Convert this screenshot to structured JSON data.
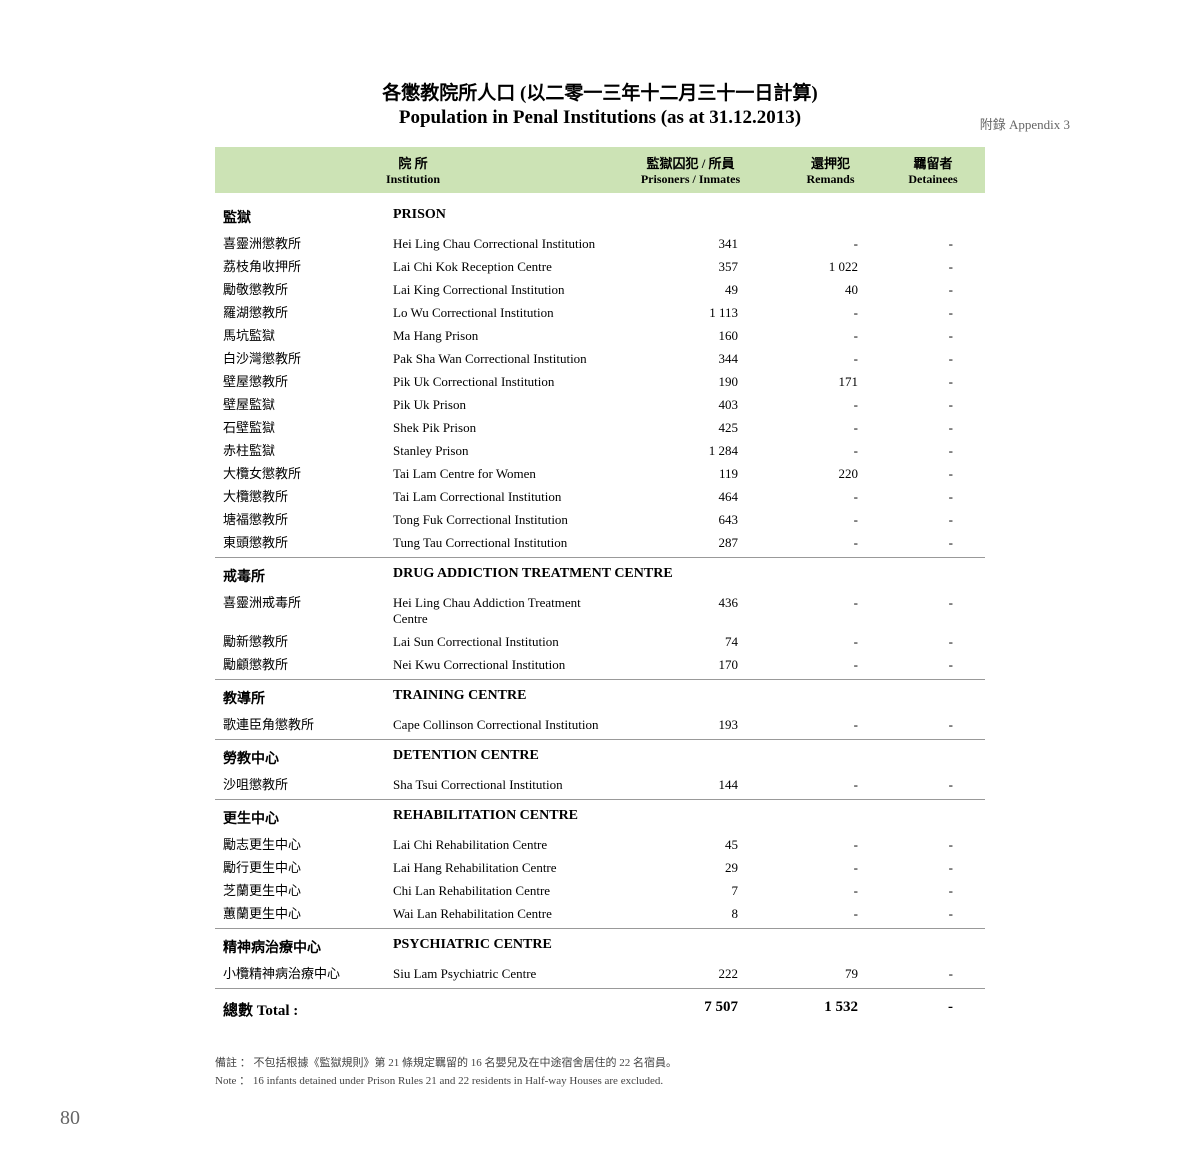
{
  "appendix": "附錄 Appendix 3",
  "title_zh": "各懲教院所人口 (以二零一三年十二月三十一日計算)",
  "title_en": "Population in Penal Institutions (as at 31.12.2013)",
  "header": {
    "inst_zh": "院 所",
    "inst_en": "Institution",
    "pris_zh": "監獄囚犯 / 所員",
    "pris_en": "Prisoners / Inmates",
    "rem_zh": "還押犯",
    "rem_en": "Remands",
    "det_zh": "羈留者",
    "det_en": "Detainees"
  },
  "sections": [
    {
      "head_zh": "監獄",
      "head_en": "PRISON",
      "rows": [
        {
          "zh": "喜靈洲懲教所",
          "en": "Hei Ling Chau Correctional Institution",
          "p": "341",
          "r": "-",
          "d": "-"
        },
        {
          "zh": "荔枝角收押所",
          "en": "Lai Chi Kok Reception Centre",
          "p": "357",
          "r": "1 022",
          "d": "-"
        },
        {
          "zh": "勵敬懲教所",
          "en": "Lai King Correctional Institution",
          "p": "49",
          "r": "40",
          "d": "-"
        },
        {
          "zh": "羅湖懲教所",
          "en": "Lo Wu Correctional Institution",
          "p": "1 113",
          "r": "-",
          "d": "-"
        },
        {
          "zh": "馬坑監獄",
          "en": "Ma Hang Prison",
          "p": "160",
          "r": "-",
          "d": "-"
        },
        {
          "zh": "白沙灣懲教所",
          "en": "Pak Sha Wan Correctional Institution",
          "p": "344",
          "r": "-",
          "d": "-"
        },
        {
          "zh": "壁屋懲教所",
          "en": "Pik Uk Correctional Institution",
          "p": "190",
          "r": "171",
          "d": "-"
        },
        {
          "zh": "壁屋監獄",
          "en": "Pik Uk Prison",
          "p": "403",
          "r": "-",
          "d": "-"
        },
        {
          "zh": "石壁監獄",
          "en": "Shek Pik Prison",
          "p": "425",
          "r": "-",
          "d": "-"
        },
        {
          "zh": "赤柱監獄",
          "en": "Stanley Prison",
          "p": "1 284",
          "r": "-",
          "d": "-"
        },
        {
          "zh": "大欖女懲教所",
          "en": "Tai Lam Centre for Women",
          "p": "119",
          "r": "220",
          "d": "-"
        },
        {
          "zh": "大欖懲教所",
          "en": "Tai Lam Correctional Institution",
          "p": "464",
          "r": "-",
          "d": "-"
        },
        {
          "zh": "塘福懲教所",
          "en": "Tong Fuk Correctional Institution",
          "p": "643",
          "r": "-",
          "d": "-"
        },
        {
          "zh": "東頭懲教所",
          "en": "Tung Tau Correctional Institution",
          "p": "287",
          "r": "-",
          "d": "-"
        }
      ]
    },
    {
      "head_zh": "戒毒所",
      "head_en": "DRUG ADDICTION TREATMENT CENTRE",
      "rows": [
        {
          "zh": "喜靈洲戒毒所",
          "en": "Hei Ling Chau Addiction Treatment Centre",
          "p": "436",
          "r": "-",
          "d": "-"
        },
        {
          "zh": "勵新懲教所",
          "en": "Lai Sun Correctional Institution",
          "p": "74",
          "r": "-",
          "d": "-"
        },
        {
          "zh": "勵顧懲教所",
          "en": "Nei Kwu Correctional Institution",
          "p": "170",
          "r": "-",
          "d": "-"
        }
      ]
    },
    {
      "head_zh": "教導所",
      "head_en": "TRAINING CENTRE",
      "rows": [
        {
          "zh": "歌連臣角懲教所",
          "en": "Cape Collinson Correctional Institution",
          "p": "193",
          "r": "-",
          "d": "-"
        }
      ]
    },
    {
      "head_zh": "勞教中心",
      "head_en": "DETENTION CENTRE",
      "rows": [
        {
          "zh": "沙咀懲教所",
          "en": "Sha Tsui Correctional Institution",
          "p": "144",
          "r": "-",
          "d": "-"
        }
      ]
    },
    {
      "head_zh": "更生中心",
      "head_en": "REHABILITATION CENTRE",
      "rows": [
        {
          "zh": "勵志更生中心",
          "en": "Lai Chi Rehabilitation Centre",
          "p": "45",
          "r": "-",
          "d": "-"
        },
        {
          "zh": "勵行更生中心",
          "en": "Lai Hang Rehabilitation Centre",
          "p": "29",
          "r": "-",
          "d": "-"
        },
        {
          "zh": "芝蘭更生中心",
          "en": "Chi Lan Rehabilitation Centre",
          "p": "7",
          "r": "-",
          "d": "-"
        },
        {
          "zh": "蕙蘭更生中心",
          "en": "Wai Lan Rehabilitation Centre",
          "p": "8",
          "r": "-",
          "d": "-"
        }
      ]
    },
    {
      "head_zh": "精神病治療中心",
      "head_en": "PSYCHIATRIC CENTRE",
      "rows": [
        {
          "zh": "小欖精神病治療中心",
          "en": "Siu Lam Psychiatric Centre",
          "p": "222",
          "r": "79",
          "d": "-"
        }
      ]
    }
  ],
  "total": {
    "label": "總數 Total :",
    "p": "7 507",
    "r": "1 532",
    "d": "-"
  },
  "note_zh": "備註 ： 不包括根據《監獄規則》第 21 條規定羈留的 16 名嬰兒及在中途宿舍居住的 22 名宿員。",
  "note_en": "Note ： 16 infants detained under Prison Rules 21 and 22 residents in Half-way Houses are excluded.",
  "page_number": "80"
}
